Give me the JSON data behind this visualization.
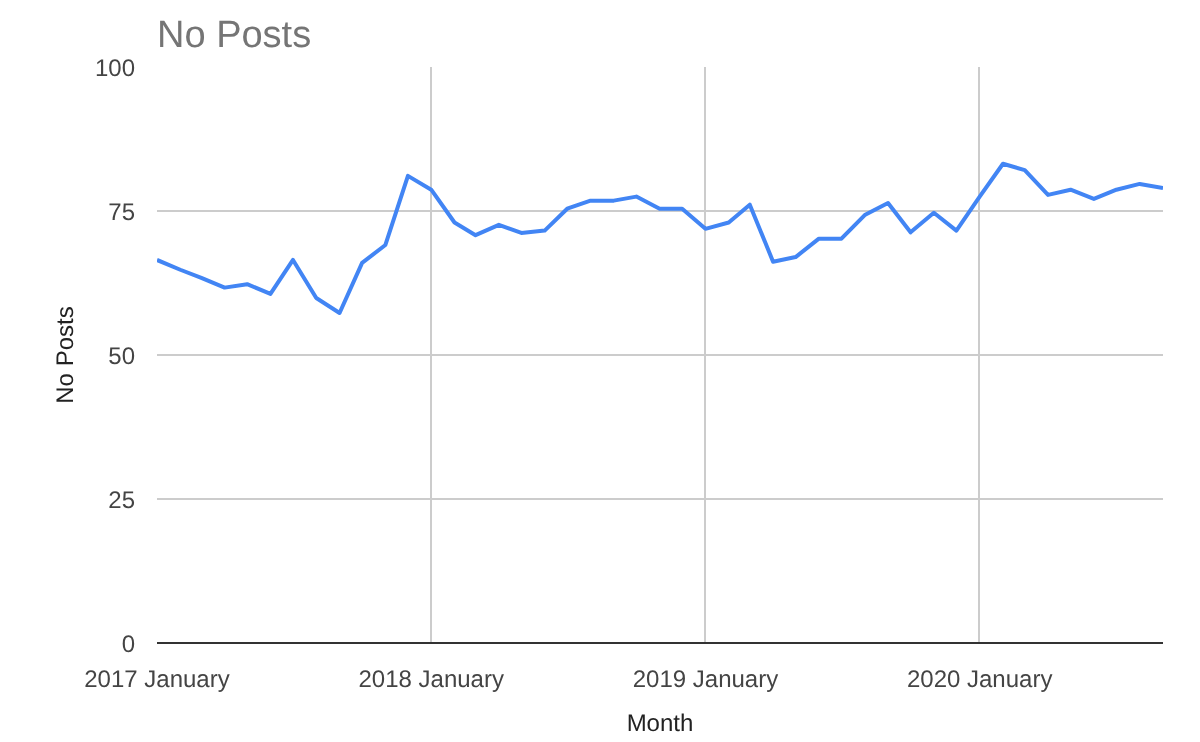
{
  "chart_data": {
    "type": "line",
    "title": "No Posts",
    "xlabel": "Month",
    "ylabel": "No Posts",
    "x": [
      "2017-01",
      "2017-02",
      "2017-03",
      "2017-04",
      "2017-05",
      "2017-06",
      "2017-07",
      "2017-08",
      "2017-09",
      "2017-10",
      "2017-11",
      "2017-12",
      "2018-01",
      "2018-02",
      "2018-03",
      "2018-04",
      "2018-05",
      "2018-06",
      "2018-07",
      "2018-08",
      "2018-09",
      "2018-10",
      "2018-11",
      "2018-12",
      "2019-01",
      "2019-02",
      "2019-03",
      "2019-04",
      "2019-05",
      "2019-06",
      "2019-07",
      "2019-08",
      "2019-09",
      "2019-10",
      "2019-11",
      "2019-12",
      "2020-01",
      "2020-02",
      "2020-03",
      "2020-04",
      "2020-05",
      "2020-06",
      "2020-07",
      "2020-08",
      "2020-09"
    ],
    "series": [
      {
        "color": "#4285f4",
        "values": [
          66.5,
          64.8,
          63.4,
          61.7,
          62.3,
          60.6,
          66.5,
          59.9,
          57.3,
          66,
          69.1,
          81.1,
          78.7,
          73,
          70.8,
          72.6,
          71.2,
          71.6,
          75.4,
          76.8,
          76.8,
          77.5,
          75.4,
          75.4,
          71.9,
          73,
          76.1,
          66.2,
          67,
          70.2,
          70.2,
          74.3,
          76.4,
          71.3,
          74.7,
          71.6,
          77.5,
          83.2,
          82.1,
          77.8,
          78.7,
          77.1,
          78.7,
          79.7,
          79
        ]
      }
    ],
    "xlim": [
      "2017-01",
      "2020-09"
    ],
    "ylim": [
      0,
      100
    ],
    "yticks": [
      0,
      25,
      50,
      75,
      100
    ],
    "xticks": [
      {
        "value": "2017-01",
        "label": "2017 January"
      },
      {
        "value": "2018-01",
        "label": "2018 January"
      },
      {
        "value": "2019-01",
        "label": "2019 January"
      },
      {
        "value": "2020-01",
        "label": "2020 January"
      }
    ],
    "grid": true,
    "line_style": "solid"
  }
}
